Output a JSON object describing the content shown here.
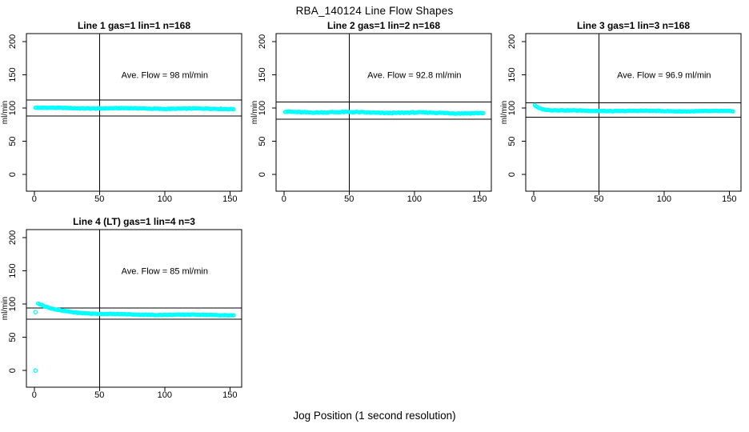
{
  "chart_data": {
    "type": "scatter",
    "title": "RBA_140124  Line Flow Shapes",
    "xlabel": "Jog Position (1 second resolution)",
    "ylabel": "ml/min",
    "point_color": "#00FFFF",
    "line_color": "#000000",
    "background": "#FFFFFF",
    "x_ticks": [
      0,
      50,
      100,
      150
    ],
    "y_ticks": [
      0,
      50,
      100,
      150,
      200
    ],
    "x_range": [
      -6,
      159
    ],
    "y_range": [
      -25,
      212
    ],
    "vline_x": 50,
    "grid": false,
    "annotation_anchor": {
      "x": 100,
      "y": 150
    },
    "panels": [
      {
        "title": "Line 1 gas=1 lin=1 n=168",
        "annotation": "Ave. Flow =  98  ml/min",
        "ave_flow": 98,
        "n": 168,
        "upper_line": 112,
        "lower_line": 88,
        "profile": [
          [
            1,
            100.3
          ],
          [
            20,
            100
          ],
          [
            60,
            99.6
          ],
          [
            100,
            99.2
          ],
          [
            153,
            98.8
          ]
        ],
        "noise": 0.9,
        "x_start": 1,
        "x_end": 153,
        "outliers": []
      },
      {
        "title": "Line 2 gas=1 lin=2 n=168",
        "annotation": "Ave. Flow =  92.8  ml/min",
        "ave_flow": 92.8,
        "n": 168,
        "upper_line": 109,
        "lower_line": 83,
        "profile": [
          [
            1,
            94.3
          ],
          [
            20,
            94
          ],
          [
            60,
            93.4
          ],
          [
            100,
            93
          ],
          [
            153,
            92.4
          ]
        ],
        "noise": 1.2,
        "x_start": 1,
        "x_end": 153,
        "outliers": []
      },
      {
        "title": "Line 3 gas=1 lin=3 n=168",
        "annotation": "Ave. Flow =  96.9  ml/min",
        "ave_flow": 96.9,
        "n": 168,
        "upper_line": 108,
        "lower_line": 86.5,
        "profile": [
          [
            1,
            105
          ],
          [
            2,
            103
          ],
          [
            4,
            100.5
          ],
          [
            7,
            98.5
          ],
          [
            12,
            97
          ],
          [
            25,
            96.2
          ],
          [
            60,
            95.8
          ],
          [
            153,
            95.2
          ]
        ],
        "noise": 0.8,
        "x_start": 1,
        "x_end": 153,
        "outliers": []
      },
      {
        "title": "Line 4 (LT) gas=1 lin=4 n=3",
        "annotation": "Ave. Flow =  85  ml/min",
        "ave_flow": 85,
        "n": 3,
        "upper_line": 94,
        "lower_line": 77,
        "profile": [
          [
            3,
            101
          ],
          [
            5,
            99
          ],
          [
            8,
            96.5
          ],
          [
            12,
            93.8
          ],
          [
            17,
            91.5
          ],
          [
            22,
            90
          ],
          [
            28,
            88.5
          ],
          [
            35,
            87
          ],
          [
            45,
            85.8
          ],
          [
            55,
            85
          ],
          [
            70,
            84.4
          ],
          [
            95,
            84
          ],
          [
            120,
            83.8
          ],
          [
            153,
            83.4
          ]
        ],
        "noise": 0.8,
        "x_start": 3,
        "x_end": 153,
        "outliers": [
          [
            1,
            0
          ],
          [
            1,
            88
          ]
        ]
      }
    ]
  }
}
